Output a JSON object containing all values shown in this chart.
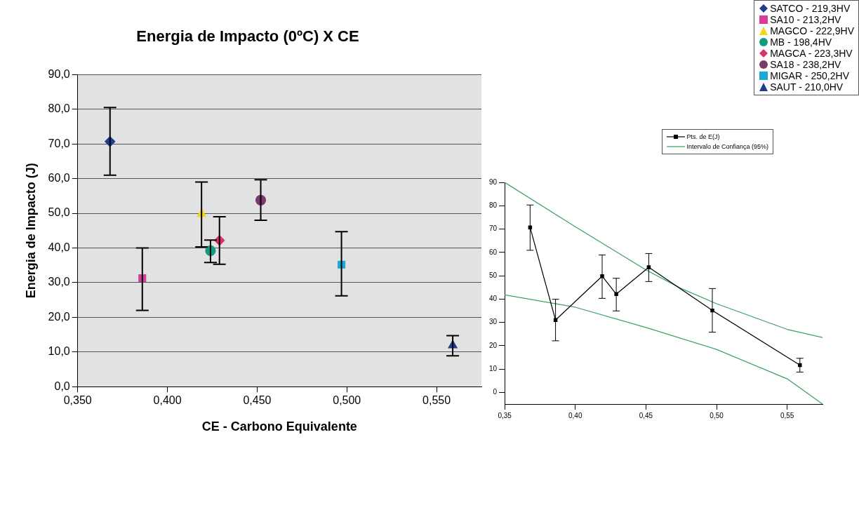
{
  "chart_data": [
    {
      "type": "scatter",
      "title": "Energia de Impacto (0ºC) X CE",
      "xlabel": "CE - Carbono Equivalente",
      "ylabel": "Energia de Impacto (J)",
      "xlim": [
        0.35,
        0.575
      ],
      "xticks": [
        {
          "value": 0.35,
          "label": "0,350"
        },
        {
          "value": 0.4,
          "label": "0,400"
        },
        {
          "value": 0.45,
          "label": "0,450"
        },
        {
          "value": 0.5,
          "label": "0,500"
        },
        {
          "value": 0.55,
          "label": "0,550"
        }
      ],
      "ylim": [
        0,
        90
      ],
      "yticks": [
        {
          "value": 0,
          "label": "0,0"
        },
        {
          "value": 10,
          "label": "10,0"
        },
        {
          "value": 20,
          "label": "20,0"
        },
        {
          "value": 30,
          "label": "30,0"
        },
        {
          "value": 40,
          "label": "40,0"
        },
        {
          "value": 50,
          "label": "50,0"
        },
        {
          "value": 60,
          "label": "60,0"
        },
        {
          "value": 70,
          "label": "70,0"
        },
        {
          "value": 80,
          "label": "80,0"
        },
        {
          "value": 90,
          "label": "90,0"
        }
      ],
      "grid": "y",
      "legend": "top right",
      "series": [
        {
          "name": "SATCO - 219,3HV",
          "color": "#1f3d8c",
          "marker": "diamond",
          "x": [
            0.368
          ],
          "values": [
            70.7
          ],
          "errors": [
            [
              61,
              80.5
            ]
          ]
        },
        {
          "name": "SA10 - 213,2HV",
          "color": "#d63d9a",
          "marker": "square",
          "x": [
            0.386
          ],
          "values": [
            31.3
          ],
          "errors": [
            [
              22,
              40
            ]
          ]
        },
        {
          "name": "MAGCO - 222,9HV",
          "color": "#f5d41c",
          "marker": "triangle",
          "x": [
            0.419
          ],
          "values": [
            49.8
          ],
          "errors": [
            [
              40.3,
              59
            ]
          ]
        },
        {
          "name": "MB - 198,4HV",
          "color": "#139a80",
          "marker": "circle",
          "x": [
            0.424
          ],
          "values": [
            39.2
          ],
          "errors": [
            [
              35.8,
              42.3
            ]
          ]
        },
        {
          "name": "MAGCA - 223,3HV",
          "color": "#d6336c",
          "marker": "diamond",
          "x": [
            0.429
          ],
          "values": [
            42.2
          ],
          "errors": [
            [
              35.3,
              49
            ]
          ]
        },
        {
          "name": "SA18 - 238,2HV",
          "color": "#7b3a6e",
          "marker": "circle",
          "x": [
            0.452
          ],
          "values": [
            53.8
          ],
          "errors": [
            [
              48,
              59.7
            ]
          ]
        },
        {
          "name": "MIGAR - 250,2HV",
          "color": "#1fa7d6",
          "marker": "square",
          "x": [
            0.497
          ],
          "values": [
            35.2
          ],
          "errors": [
            [
              26.2,
              44.7
            ]
          ]
        },
        {
          "name": "SAUT - 210,0HV",
          "color": "#1f3d8c",
          "marker": "triangle",
          "x": [
            0.559
          ],
          "values": [
            11.9
          ],
          "errors": [
            [
              8.9,
              14.7
            ]
          ]
        }
      ]
    },
    {
      "type": "line",
      "xlim": [
        0.35,
        0.575
      ],
      "xticks": [
        {
          "value": 0.35,
          "label": "0,35"
        },
        {
          "value": 0.4,
          "label": "0,40"
        },
        {
          "value": 0.45,
          "label": "0,45"
        },
        {
          "value": 0.5,
          "label": "0,50"
        },
        {
          "value": 0.55,
          "label": "0,55"
        }
      ],
      "ylim": [
        -5,
        90
      ],
      "yticks": [
        0,
        10,
        20,
        30,
        40,
        50,
        60,
        70,
        80,
        90
      ],
      "grid": false,
      "legend": "top right",
      "series": [
        {
          "name": "Pts. de E(J)",
          "color": "#000000",
          "marker": "square",
          "x": [
            0.368,
            0.386,
            0.419,
            0.429,
            0.452,
            0.497,
            0.559
          ],
          "values": [
            70.7,
            31,
            49.8,
            42.1,
            53.6,
            35.1,
            11.7
          ],
          "errors": [
            [
              60.9,
              80.3
            ],
            [
              22.1,
              39.9
            ],
            [
              40.3,
              58.9
            ],
            [
              34.9,
              48.9
            ],
            [
              47.5,
              59.5
            ],
            [
              25.8,
              44.5
            ],
            [
              8.7,
              14.6
            ]
          ]
        },
        {
          "name": "Intervalo de Confiança (95%)",
          "color": "#3aa060",
          "marker": "none",
          "x": [
            0.35,
            0.4,
            0.45,
            0.475,
            0.5,
            0.55,
            0.575
          ],
          "values": [
            90,
            71,
            52.5,
            44.5,
            38,
            27,
            23.5
          ]
        },
        {
          "color": "#3aa060",
          "marker": "none",
          "x": [
            0.35,
            0.4,
            0.45,
            0.5,
            0.55,
            0.575
          ],
          "values": [
            41.8,
            36.5,
            27.8,
            18.4,
            5.8,
            -5
          ]
        }
      ]
    }
  ]
}
